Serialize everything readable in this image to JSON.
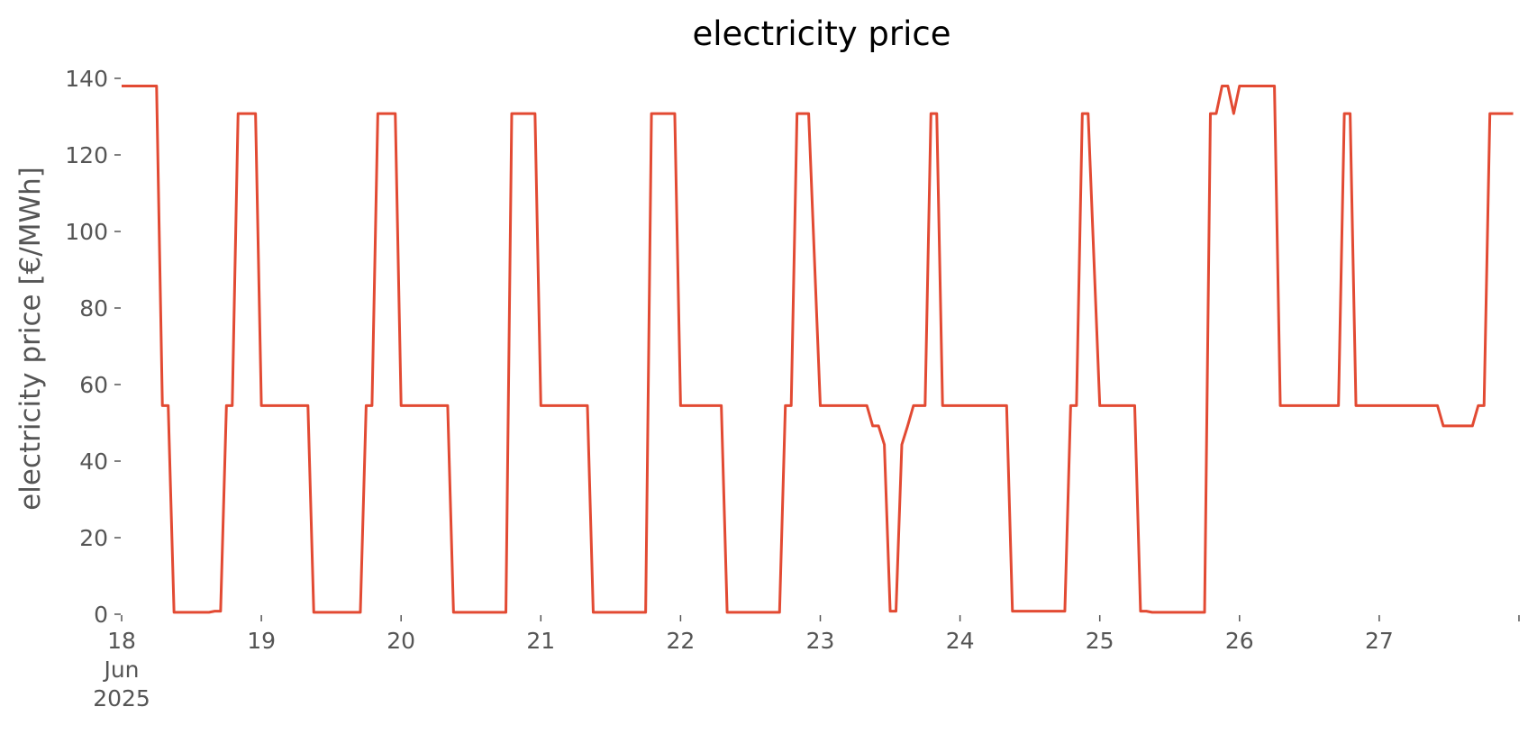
{
  "chart_data": {
    "type": "line",
    "title": "electricity price",
    "xlabel": "",
    "ylabel": "electricity price [€/MWh]",
    "ylim": [
      0,
      140
    ],
    "yticks": [
      0,
      20,
      40,
      60,
      80,
      100,
      120,
      140
    ],
    "xlim": [
      "2025-06-18T00:00",
      "2025-06-28T00:00"
    ],
    "xticks": [
      {
        "x": "2025-06-18T00:00",
        "label": [
          "18",
          "Jun",
          "2025"
        ]
      },
      {
        "x": "2025-06-19T00:00",
        "label": [
          "19"
        ]
      },
      {
        "x": "2025-06-20T00:00",
        "label": [
          "20"
        ]
      },
      {
        "x": "2025-06-21T00:00",
        "label": [
          "21"
        ]
      },
      {
        "x": "2025-06-22T00:00",
        "label": [
          "22"
        ]
      },
      {
        "x": "2025-06-23T00:00",
        "label": [
          "23"
        ]
      },
      {
        "x": "2025-06-24T00:00",
        "label": [
          "24"
        ]
      },
      {
        "x": "2025-06-25T00:00",
        "label": [
          "25"
        ]
      },
      {
        "x": "2025-06-26T00:00",
        "label": [
          "26"
        ]
      },
      {
        "x": "2025-06-27T00:00",
        "label": [
          "27"
        ]
      },
      {
        "x": "2025-06-28T00:00",
        "label": []
      }
    ],
    "grid": false,
    "line_color": "#E24A33",
    "series": [
      {
        "x": [
          "2025-06-18T00:00",
          "2025-06-18T06:00",
          "2025-06-18T07:00",
          "2025-06-18T08:00",
          "2025-06-18T09:00",
          "2025-06-18T10:00",
          "2025-06-18T11:00",
          "2025-06-18T12:00",
          "2025-06-18T13:00",
          "2025-06-18T14:00",
          "2025-06-18T15:00",
          "2025-06-18T16:00",
          "2025-06-18T17:00",
          "2025-06-18T18:00",
          "2025-06-18T19:00",
          "2025-06-18T20:00",
          "2025-06-18T21:00",
          "2025-06-18T22:00",
          "2025-06-18T23:00",
          "2025-06-19T00:00",
          "2025-06-19T01:00",
          "2025-06-19T08:00",
          "2025-06-19T09:00",
          "2025-06-19T17:00",
          "2025-06-19T18:00",
          "2025-06-19T19:00",
          "2025-06-19T20:00",
          "2025-06-19T23:00",
          "2025-06-20T00:00",
          "2025-06-20T08:00",
          "2025-06-20T09:00",
          "2025-06-20T18:00",
          "2025-06-20T19:00",
          "2025-06-20T23:00",
          "2025-06-21T00:00",
          "2025-06-21T08:00",
          "2025-06-21T09:00",
          "2025-06-21T18:00",
          "2025-06-21T19:00",
          "2025-06-21T23:00",
          "2025-06-22T00:00",
          "2025-06-22T07:00",
          "2025-06-22T08:00",
          "2025-06-22T17:00",
          "2025-06-22T18:00",
          "2025-06-22T19:00",
          "2025-06-22T20:00",
          "2025-06-22T22:00",
          "2025-06-23T00:00",
          "2025-06-23T08:00",
          "2025-06-23T09:00",
          "2025-06-23T10:00",
          "2025-06-23T11:00",
          "2025-06-23T12:00",
          "2025-06-23T13:00",
          "2025-06-23T14:00",
          "2025-06-23T15:00",
          "2025-06-23T16:00",
          "2025-06-23T18:00",
          "2025-06-23T19:00",
          "2025-06-23T20:00",
          "2025-06-23T21:00",
          "2025-06-23T22:00",
          "2025-06-23T23:00",
          "2025-06-24T00:00",
          "2025-06-24T08:00",
          "2025-06-24T09:00",
          "2025-06-24T18:00",
          "2025-06-24T19:00",
          "2025-06-24T20:00",
          "2025-06-24T21:00",
          "2025-06-24T22:00",
          "2025-06-25T00:00",
          "2025-06-25T06:00",
          "2025-06-25T07:00",
          "2025-06-25T08:00",
          "2025-06-25T09:00",
          "2025-06-25T18:00",
          "2025-06-25T19:00",
          "2025-06-25T20:00",
          "2025-06-25T21:00",
          "2025-06-25T22:00",
          "2025-06-25T23:00",
          "2025-06-26T00:00",
          "2025-06-26T06:00",
          "2025-06-26T07:00",
          "2025-06-26T17:00",
          "2025-06-26T18:00",
          "2025-06-26T19:00",
          "2025-06-26T20:00",
          "2025-06-26T23:00",
          "2025-06-27T00:00",
          "2025-06-27T10:00",
          "2025-06-27T11:00",
          "2025-06-27T12:00",
          "2025-06-27T16:00",
          "2025-06-27T17:00",
          "2025-06-27T18:00",
          "2025-06-27T19:00",
          "2025-06-27T20:00",
          "2025-06-27T23:00"
        ],
        "y": [
          138,
          138,
          54.5,
          54.5,
          0.5,
          0.5,
          0.5,
          0.5,
          0.5,
          0.5,
          0.5,
          0.8,
          0.8,
          54.5,
          54.5,
          130.8,
          130.8,
          130.8,
          130.8,
          54.5,
          54.5,
          54.5,
          0.5,
          0.5,
          54.5,
          54.5,
          130.8,
          130.8,
          54.5,
          54.5,
          0.5,
          0.5,
          130.8,
          130.8,
          54.5,
          54.5,
          0.5,
          0.5,
          130.8,
          130.8,
          54.5,
          54.5,
          0.5,
          0.5,
          54.5,
          54.5,
          130.8,
          130.8,
          54.5,
          54.5,
          49.2,
          49.2,
          44.3,
          0.8,
          0.8,
          44.3,
          49.2,
          54.5,
          54.5,
          130.8,
          130.8,
          54.5,
          54.5,
          54.5,
          54.5,
          54.5,
          0.8,
          0.8,
          54.5,
          54.5,
          130.8,
          130.8,
          54.5,
          54.5,
          0.8,
          0.8,
          0.5,
          0.5,
          130.8,
          130.8,
          138,
          138,
          130.8,
          138,
          138,
          54.5,
          54.5,
          130.8,
          130.8,
          54.5,
          54.5,
          54.5,
          54.5,
          49.2,
          49.2,
          49.2,
          54.5,
          54.5,
          130.8,
          130.8,
          130.8
        ]
      }
    ]
  }
}
